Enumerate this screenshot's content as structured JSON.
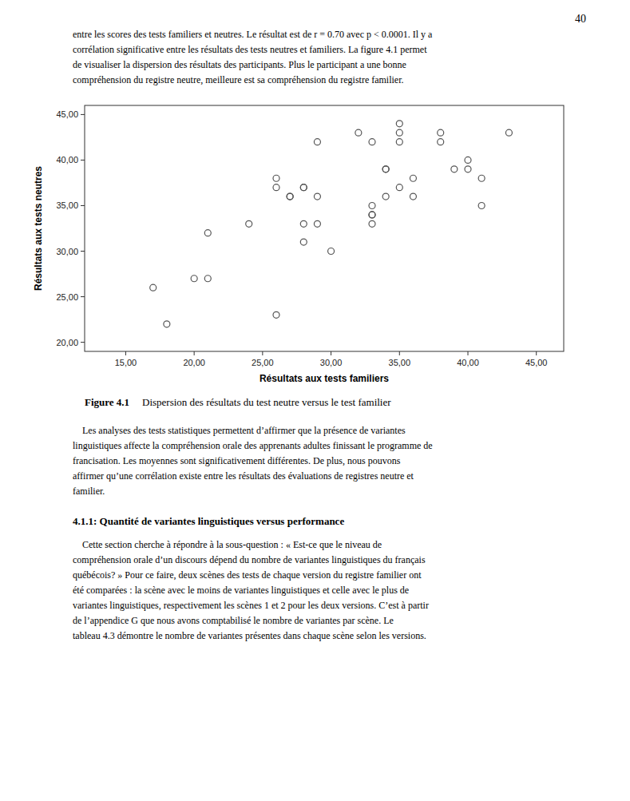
{
  "page_number": "40",
  "para1": "entre les scores des tests familiers et neutres. Le résultat est de r = 0.70 avec p < 0.0001. Il y a\ncorrélation significative entre les résultats des tests neutres et familiers. La figure 4.1 permet\nde visualiser la dispersion des résultats des participants. Plus le participant a une bonne\ncompréhension du registre neutre, meilleure est sa compréhension du registre familier.",
  "caption_label": "Figure 4.1",
  "caption_text": "Dispersion des résultats du test neutre versus le test familier",
  "para2": "    Les analyses des tests statistiques permettent d’affirmer que la présence de variantes\nlinguistiques affecte la compréhension orale des apprenants adultes finissant le programme de\nfrancisation. Les moyennes sont significativement différentes. De plus, nous pouvons\naffirmer qu’une corrélation existe entre les résultats des évaluations de registres neutre et\nfamilier.",
  "section_title": "4.1.1: Quantité de variantes linguistiques versus performance",
  "para3": "    Cette section cherche à répondre à la sous-question : « Est-ce que le niveau de\ncompréhension orale d’un discours dépend du nombre de variantes linguistiques du français\nquébécois? » Pour ce faire, deux scènes des tests de chaque version du registre familier ont\nété comparées : la scène avec le moins de variantes linguistiques et celle avec le plus de\nvariantes linguistiques, respectivement les scènes 1 et 2 pour les deux versions. C’est à partir\nde l’appendice G que nous avons comptabilisé le nombre de variantes par scène. Le\ntableau 4.3 démontre le nombre de variantes présentes dans chaque scène selon les versions.",
  "chart_data": {
    "type": "scatter",
    "x": [
      17,
      18,
      20,
      21,
      21,
      24,
      26,
      26,
      26,
      27,
      27,
      28,
      28,
      28,
      28,
      29,
      29,
      29,
      30,
      32,
      33,
      33,
      33,
      33,
      33,
      34,
      34,
      34,
      35,
      35,
      35,
      35,
      36,
      36,
      38,
      38,
      39,
      40,
      40,
      41,
      41,
      43
    ],
    "values": [
      26,
      22,
      27,
      27,
      32,
      33,
      23,
      38,
      37,
      36,
      36,
      37,
      37,
      33,
      31,
      42,
      36,
      33,
      30,
      43,
      42,
      34,
      34,
      33,
      35,
      39,
      39,
      36,
      44,
      43,
      37,
      42,
      38,
      36,
      43,
      42,
      39,
      40,
      39,
      35,
      38,
      43
    ],
    "xlabel": "Résultats aux tests familiers",
    "ylabel": "Résultats aux tests neutres",
    "xlim": [
      12,
      47
    ],
    "ylim": [
      19,
      46
    ],
    "xticks": [
      {
        "value": 15,
        "label": "15,00"
      },
      {
        "value": 20,
        "label": "20,00"
      },
      {
        "value": 25,
        "label": "25,00"
      },
      {
        "value": 30,
        "label": "30,00"
      },
      {
        "value": 35,
        "label": "35,00"
      },
      {
        "value": 40,
        "label": "40,00"
      },
      {
        "value": 45,
        "label": "45,00"
      }
    ],
    "yticks": [
      {
        "value": 20,
        "label": "20,00"
      },
      {
        "value": 25,
        "label": "25,00"
      },
      {
        "value": 30,
        "label": "30,00"
      },
      {
        "value": 35,
        "label": "35,00"
      },
      {
        "value": 40,
        "label": "40,00"
      },
      {
        "value": 45,
        "label": "45,00"
      }
    ],
    "color": "#555555",
    "marker": "open-circle",
    "grid": false
  }
}
